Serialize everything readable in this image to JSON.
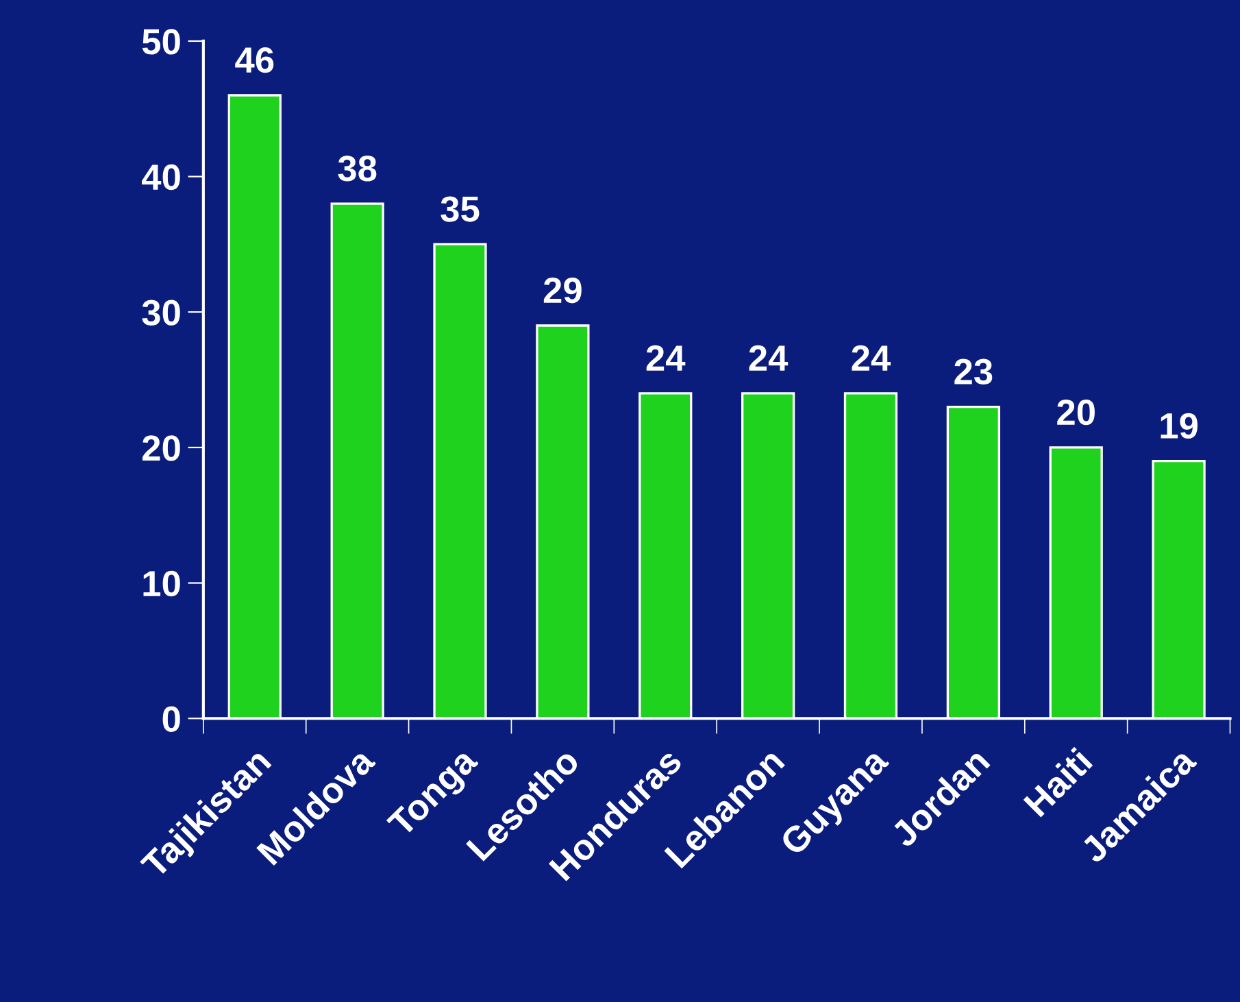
{
  "chart_data": {
    "type": "bar",
    "categories": [
      "Tajikistan",
      "Moldova",
      "Tonga",
      "Lesotho",
      "Honduras",
      "Lebanon",
      "Guyana",
      "Jordan",
      "Haiti",
      "Jamaica"
    ],
    "values": [
      46,
      38,
      35,
      29,
      24,
      24,
      24,
      23,
      20,
      19
    ],
    "color": "#1ed21e",
    "ylim": [
      0,
      50
    ],
    "yticks": [
      0,
      10,
      20,
      30,
      40,
      50
    ],
    "data_labels": true,
    "grid": false,
    "legend": false
  }
}
